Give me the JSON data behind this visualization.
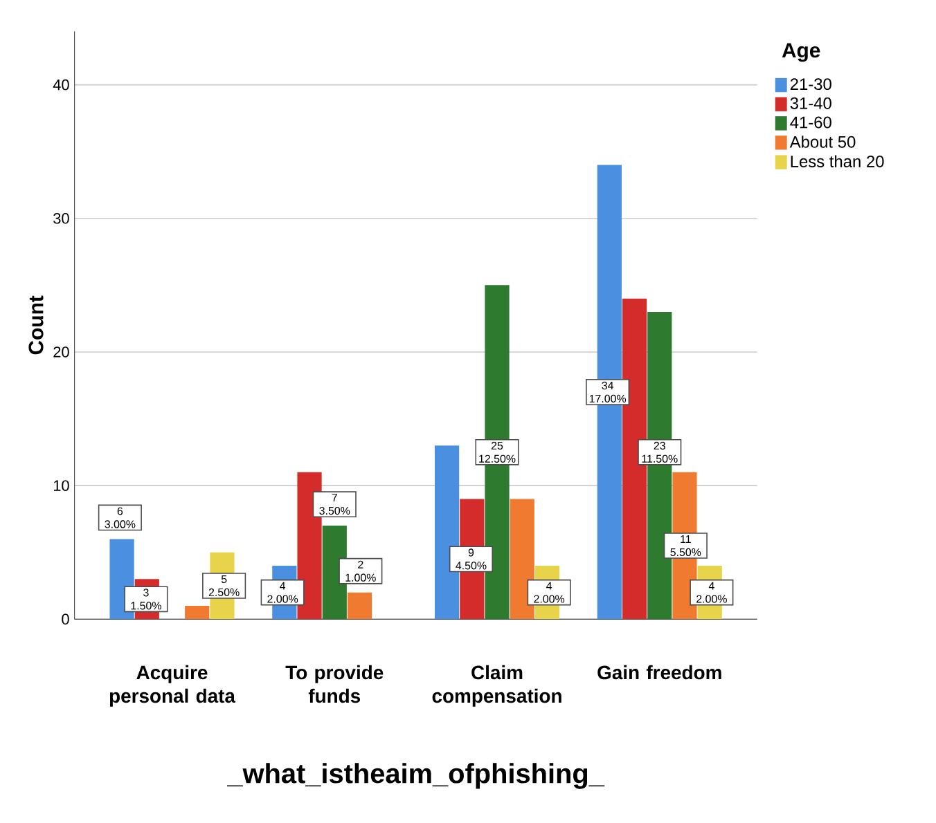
{
  "chart_data": {
    "type": "bar",
    "xlabel": "_what_istheaim_ofphishing_",
    "ylabel": "Count",
    "legend_title": "Age",
    "categories": [
      "Acquire personal data",
      "To provide funds",
      "Claim compensation",
      "Gain freedom"
    ],
    "series": [
      {
        "name": "21-30",
        "color": "#4a8fe0",
        "values": [
          6,
          4,
          13,
          34
        ],
        "value_labels": [
          "6 3.00%",
          "4 2.00%",
          null,
          "34 17.00%"
        ]
      },
      {
        "name": "31-40",
        "color": "#d42b2b",
        "values": [
          3,
          11,
          9,
          24
        ],
        "value_labels": [
          "3 1.50%",
          null,
          "9 4.50%",
          null
        ]
      },
      {
        "name": "41-60",
        "color": "#2e7a2e",
        "values": [
          0,
          7,
          25,
          23
        ],
        "value_labels": [
          null,
          "7 3.50%",
          "25 12.50%",
          "23 11.50%"
        ]
      },
      {
        "name": "About 50",
        "color": "#ef7a30",
        "values": [
          1,
          2,
          9,
          11
        ],
        "value_labels": [
          null,
          "2 1.00%",
          null,
          "11 5.50%"
        ]
      },
      {
        "name": "Less than 20",
        "color": "#e8d44a",
        "values": [
          5,
          0,
          4,
          4
        ],
        "value_labels": [
          "5 2.50%",
          null,
          "4 2.00%",
          "4 2.00%"
        ]
      }
    ],
    "ylim": [
      0,
      44
    ],
    "yticks": [
      0,
      10,
      20,
      30,
      40
    ],
    "grid": "y",
    "legend": "right"
  }
}
